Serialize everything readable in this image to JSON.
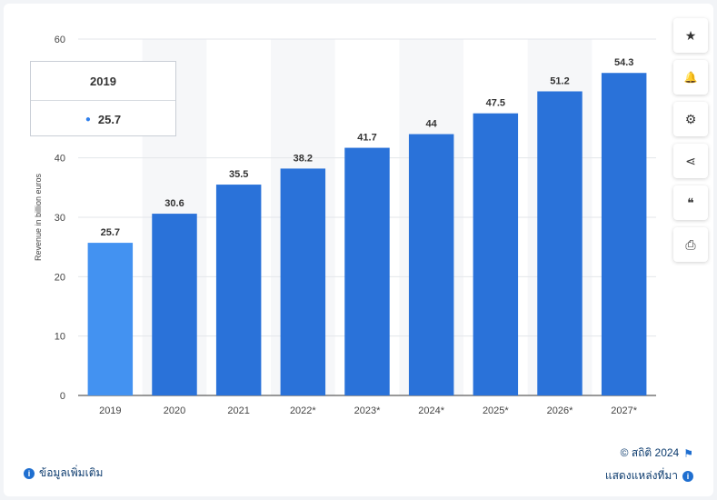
{
  "chart_data": {
    "type": "bar",
    "categories": [
      "2019",
      "2020",
      "2021",
      "2022*",
      "2023*",
      "2024*",
      "2025*",
      "2026*",
      "2027*"
    ],
    "values": [
      25.7,
      30.6,
      35.5,
      38.2,
      41.7,
      44,
      47.5,
      51.2,
      54.3
    ],
    "value_labels": [
      "25.7",
      "30.6",
      "35.5",
      "38.2",
      "41.7",
      "44",
      "47.5",
      "51.2",
      "54.3"
    ],
    "ylabel": "Revenue in billion euros",
    "ylim": [
      0,
      60
    ],
    "yticks": [
      0,
      10,
      20,
      30,
      40,
      60
    ],
    "grid": true,
    "highlighted_index": 0,
    "bar_color": "#2a72d9",
    "highlight_color": "#4392f1"
  },
  "tooltip": {
    "year": "2019",
    "value": "25.7"
  },
  "toolbar": {
    "buttons": [
      {
        "icon": "star-icon",
        "glyph": "★"
      },
      {
        "icon": "bell-icon",
        "glyph": "🔔"
      },
      {
        "icon": "gear-icon",
        "glyph": "⚙"
      },
      {
        "icon": "share-icon",
        "glyph": "⋖"
      },
      {
        "icon": "quote-icon",
        "glyph": "❝"
      },
      {
        "icon": "print-icon",
        "glyph": "⎙"
      }
    ]
  },
  "footer": {
    "more_info": "ข้อมูลเพิ่มเติม",
    "copyright": "© สถิติ 2024",
    "show_source": "แสดงแหล่งที่มา"
  }
}
